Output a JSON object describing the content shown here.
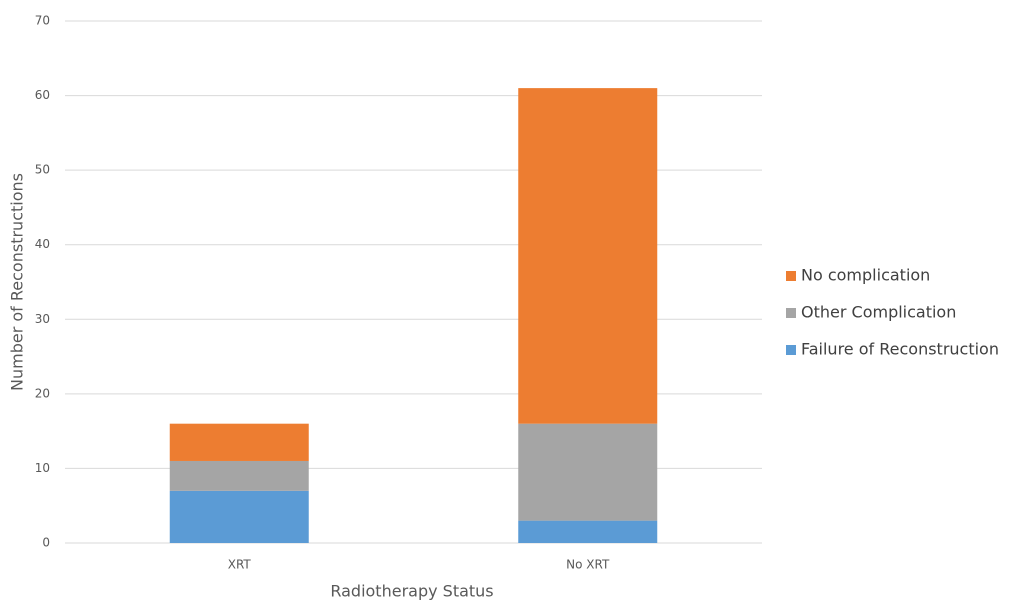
{
  "chart_data": {
    "type": "stacked_bar",
    "x_label": "Radiotherapy Status",
    "y_label": "Number of Reconstructions",
    "categories": [
      "XRT",
      "No XRT"
    ],
    "series": [
      {
        "name": "Failure of Reconstruction",
        "color": "#5b9bd5",
        "values": [
          7,
          3
        ]
      },
      {
        "name": "Other Complication",
        "color": "#a5a5a5",
        "values": [
          4,
          13
        ]
      },
      {
        "name": "No complication",
        "color": "#ed7d31",
        "values": [
          5,
          45
        ]
      }
    ],
    "ylim": [
      0,
      70
    ],
    "yticks": [
      0,
      10,
      20,
      30,
      40,
      50,
      60,
      70
    ],
    "grid": true,
    "legend": "right"
  }
}
